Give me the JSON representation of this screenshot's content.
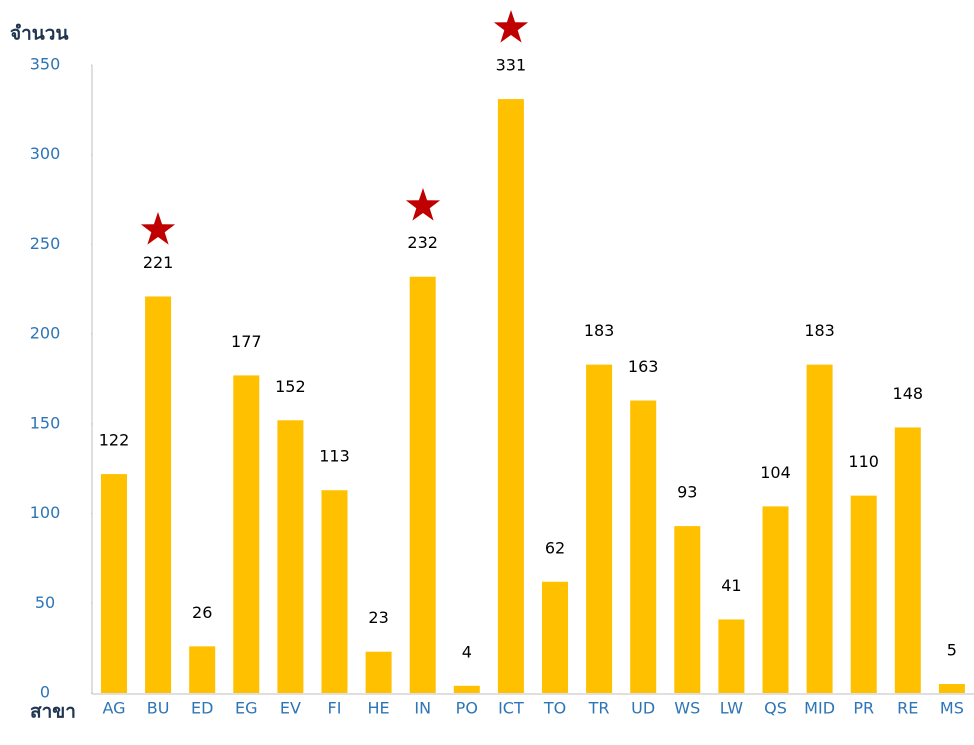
{
  "chart_data": {
    "type": "bar",
    "y_label": "จำนวน",
    "x_label": "สาขา",
    "categories": [
      "AG",
      "BU",
      "ED",
      "EG",
      "EV",
      "FI",
      "HE",
      "IN",
      "PO",
      "ICT",
      "TO",
      "TR",
      "UD",
      "WS",
      "LW",
      "QS",
      "MID",
      "PR",
      "RE",
      "MS"
    ],
    "values": [
      122,
      221,
      26,
      177,
      152,
      113,
      23,
      232,
      4,
      331,
      62,
      183,
      163,
      93,
      41,
      104,
      183,
      110,
      148,
      5
    ],
    "color": "#ffc000",
    "ylim": [
      0,
      350
    ],
    "yticks": [
      0,
      50,
      100,
      150,
      200,
      250,
      300,
      350
    ]
  }
}
